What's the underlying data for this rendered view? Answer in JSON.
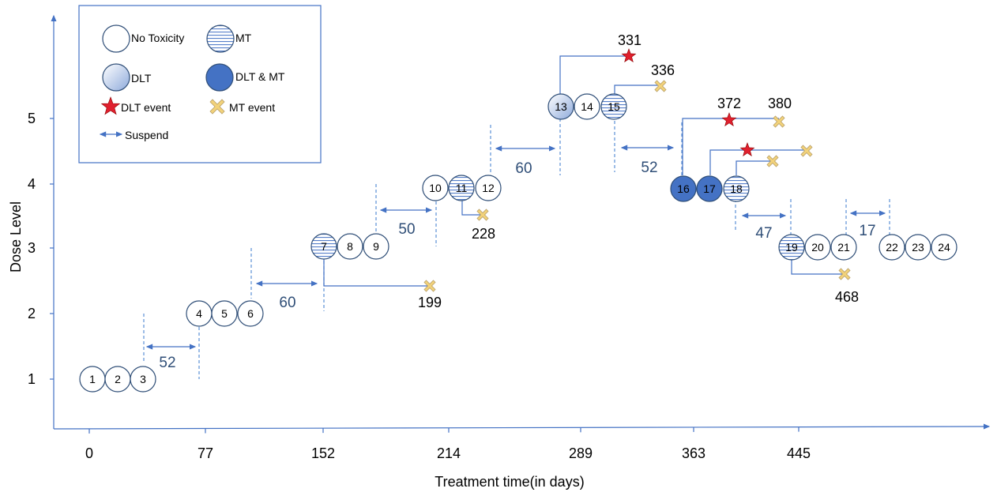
{
  "axes": {
    "x_label": "Treatment time(in days)",
    "y_label": "Dose Level",
    "x_ticks": [
      "0",
      "77",
      "152",
      "214",
      "289",
      "363",
      "445"
    ],
    "y_ticks": [
      "1",
      "2",
      "3",
      "4",
      "5"
    ]
  },
  "legend": {
    "no_toxicity": "No Toxicity",
    "mt": "MT",
    "dlt": "DLT",
    "dlt_mt": "DLT & MT",
    "dlt_event": "DLT event",
    "mt_event": "MT event",
    "suspend": "Suspend"
  },
  "patients": [
    {
      "id": "1",
      "dose": 1,
      "status": "none"
    },
    {
      "id": "2",
      "dose": 1,
      "status": "none"
    },
    {
      "id": "3",
      "dose": 1,
      "status": "none"
    },
    {
      "id": "4",
      "dose": 2,
      "status": "none"
    },
    {
      "id": "5",
      "dose": 2,
      "status": "none"
    },
    {
      "id": "6",
      "dose": 2,
      "status": "none"
    },
    {
      "id": "7",
      "dose": 3,
      "status": "MT"
    },
    {
      "id": "8",
      "dose": 3,
      "status": "none"
    },
    {
      "id": "9",
      "dose": 3,
      "status": "none"
    },
    {
      "id": "10",
      "dose": 4,
      "status": "none"
    },
    {
      "id": "11",
      "dose": 4,
      "status": "MT"
    },
    {
      "id": "12",
      "dose": 4,
      "status": "none"
    },
    {
      "id": "13",
      "dose": 5,
      "status": "DLT"
    },
    {
      "id": "14",
      "dose": 5,
      "status": "none"
    },
    {
      "id": "15",
      "dose": 5,
      "status": "MT"
    },
    {
      "id": "16",
      "dose": 4,
      "status": "DLT & MT"
    },
    {
      "id": "17",
      "dose": 4,
      "status": "DLT & MT"
    },
    {
      "id": "18",
      "dose": 4,
      "status": "MT"
    },
    {
      "id": "19",
      "dose": 3,
      "status": "MT"
    },
    {
      "id": "20",
      "dose": 3,
      "status": "none"
    },
    {
      "id": "21",
      "dose": 3,
      "status": "none"
    },
    {
      "id": "22",
      "dose": 3,
      "status": "none"
    },
    {
      "id": "23",
      "dose": 3,
      "status": "none"
    },
    {
      "id": "24",
      "dose": 3,
      "status": "none"
    }
  ],
  "suspend_gaps": [
    "52",
    "60",
    "50",
    "60",
    "52",
    "47",
    "17"
  ],
  "event_days": {
    "e199": "199",
    "e228": "228",
    "e331": "331",
    "e336": "336",
    "e372": "372",
    "e380": "380",
    "e468": "468"
  },
  "colors": {
    "axis": "#4472c4",
    "dlt_mt_fill": "#4472c4",
    "gap_text": "#2f4e77",
    "dlt_event_star": "#e0202e",
    "mt_event_cross": "#f2d27a"
  }
}
